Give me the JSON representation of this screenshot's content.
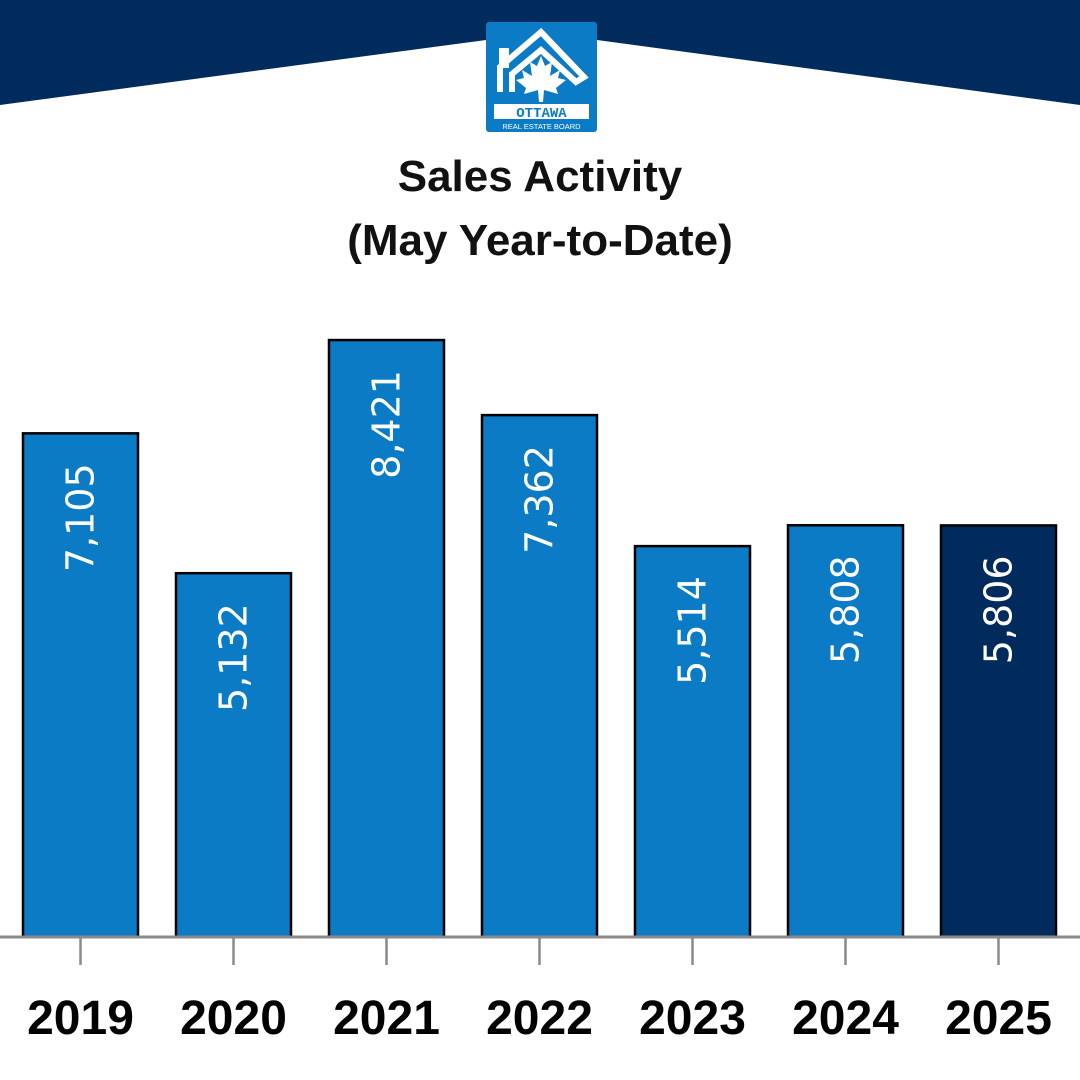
{
  "colors": {
    "header": "#002b5c",
    "bar": "#0a7bc4",
    "highlight": "#002b5c",
    "axis": "#8a8a8a"
  },
  "logo": {
    "line1": "OTTAWA",
    "line2": "REAL ESTATE BOARD"
  },
  "chart_data": {
    "type": "bar",
    "title": "Sales Activity",
    "subtitle": "(May Year-to-Date)",
    "categories": [
      "2019",
      "2020",
      "2021",
      "2022",
      "2023",
      "2024",
      "2025"
    ],
    "values": [
      7105,
      5132,
      8421,
      7362,
      5514,
      5808,
      5806
    ],
    "data_labels": [
      "7,105",
      "5,132",
      "8,421",
      "7,362",
      "5,514",
      "5,808",
      "5,806"
    ],
    "highlighted_category": "2025",
    "ylim": [
      0,
      9000
    ],
    "grid": false,
    "xlabel": "",
    "ylabel": ""
  }
}
